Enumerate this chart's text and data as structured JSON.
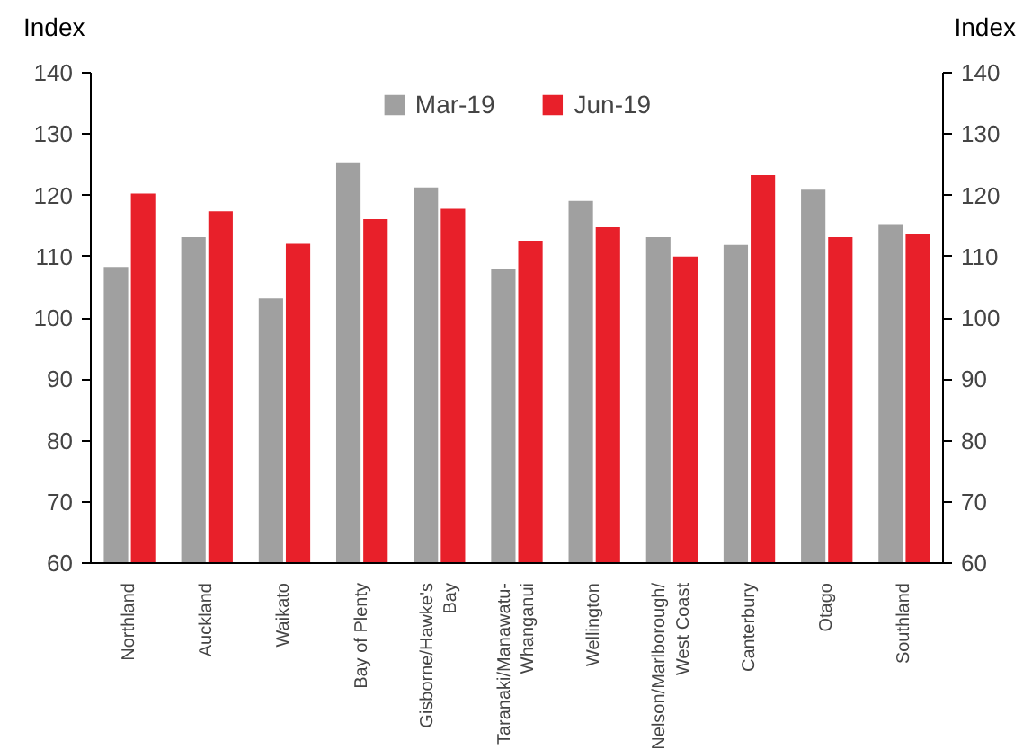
{
  "chart_data": {
    "type": "bar",
    "categories": [
      "Northland",
      "Auckland",
      "Waikato",
      "Bay of Plenty",
      "Gisborne/Hawke's\nBay",
      "Taranaki/Manawatu-\nWhanganui",
      "Wellington",
      "Nelson/Marlborough/\nWest Coast",
      "Canterbury",
      "Otago",
      "Southland"
    ],
    "series": [
      {
        "name": "Mar-19",
        "color": "#a0a0a0",
        "values": [
          108.3,
          113.2,
          103.2,
          125.4,
          121.3,
          108.0,
          119.1,
          113.2,
          111.9,
          120.9,
          115.3
        ]
      },
      {
        "name": "Jun-19",
        "color": "#e8202a",
        "values": [
          120.3,
          117.4,
          112.1,
          116.1,
          117.8,
          112.6,
          114.8,
          110.0,
          123.3,
          113.2,
          113.7
        ]
      }
    ],
    "ylabel": "Index",
    "y2label": "Index",
    "ylim": [
      60,
      140
    ],
    "yticks": [
      60,
      70,
      80,
      90,
      100,
      110,
      120,
      130,
      140
    ],
    "y2lim": [
      60,
      140
    ],
    "y2ticks": [
      60,
      70,
      80,
      90,
      100,
      110,
      120,
      130,
      140
    ],
    "grid": false,
    "legend": "top"
  }
}
